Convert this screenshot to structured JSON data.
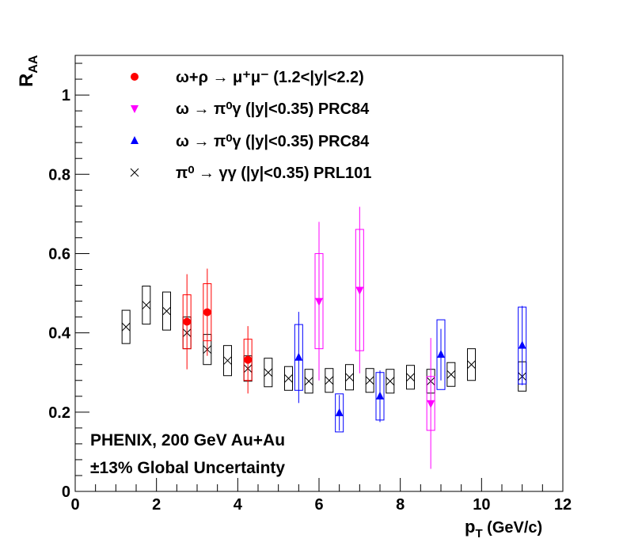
{
  "chart_data": {
    "type": "scatter",
    "xlabel_main": "p",
    "xlabel_sub": "T",
    "xlabel_unit": " (GeV/c)",
    "ylabel_main": "R",
    "ylabel_sub": "AA",
    "xlim": [
      0,
      12
    ],
    "ylim": [
      0,
      1.1
    ],
    "xticks": [
      0,
      2,
      4,
      6,
      8,
      10,
      12
    ],
    "yticks": [
      0,
      0.2,
      0.4,
      0.6,
      0.8,
      1
    ],
    "xtick_labels": [
      "0",
      "2",
      "4",
      "6",
      "8",
      "10",
      "12"
    ],
    "ytick_labels": [
      "0",
      "0.2",
      "0.4",
      "0.6",
      "0.8",
      "1"
    ],
    "grid": false,
    "legend_position": "top-left",
    "annotations": [
      "PHENIX, 200 GeV Au+Au",
      "±13% Global Uncertainty"
    ],
    "series": [
      {
        "name": "ω+ρ → μ⁺μ⁻ (1.2<|y|<2.2)",
        "marker": "circle",
        "color": "#ff0000",
        "x": [
          2.75,
          3.25,
          4.25
        ],
        "y": [
          0.428,
          0.452,
          0.332
        ],
        "stat_err": [
          0.12,
          0.11,
          0.085
        ],
        "sys_err": [
          0.068,
          0.072,
          0.052
        ]
      },
      {
        "name": "ω → π⁰γ (|y|<0.35) PRC84",
        "marker": "triangle-down",
        "color": "#ff00ff",
        "x": [
          6.0,
          7.0,
          8.75
        ],
        "y": [
          0.48,
          0.508,
          0.222
        ],
        "stat_err": [
          0.2,
          0.21,
          0.165
        ],
        "sys_err": [
          0.12,
          0.153,
          0.068
        ]
      },
      {
        "name": "ω → π⁰γ (|y|<0.35) PRC84",
        "marker": "triangle-up",
        "color": "#0000ff",
        "x": [
          5.5,
          6.5,
          7.5,
          9.0,
          11.0
        ],
        "y": [
          0.338,
          0.198,
          0.24,
          0.345,
          0.368
        ],
        "stat_err": [
          0.115,
          0.045,
          0.065,
          0.065,
          0.1
        ],
        "sys_err": [
          0.083,
          0.048,
          0.06,
          0.088,
          0.097
        ]
      },
      {
        "name": "π⁰ → γγ (|y|<0.35) PRL101",
        "marker": "cross",
        "color": "#000000",
        "x": [
          1.25,
          1.75,
          2.25,
          2.75,
          3.25,
          3.75,
          4.25,
          4.75,
          5.25,
          5.75,
          6.25,
          6.75,
          7.25,
          7.75,
          8.25,
          8.75,
          9.25,
          9.75,
          11.0
        ],
        "y": [
          0.415,
          0.47,
          0.455,
          0.4,
          0.358,
          0.33,
          0.31,
          0.3,
          0.285,
          0.278,
          0.28,
          0.288,
          0.28,
          0.278,
          0.288,
          0.278,
          0.295,
          0.32,
          0.29
        ],
        "sys_err": [
          0.042,
          0.048,
          0.048,
          0.04,
          0.038,
          0.038,
          0.032,
          0.036,
          0.03,
          0.03,
          0.03,
          0.032,
          0.03,
          0.03,
          0.03,
          0.03,
          0.03,
          0.04,
          0.037
        ]
      }
    ]
  }
}
